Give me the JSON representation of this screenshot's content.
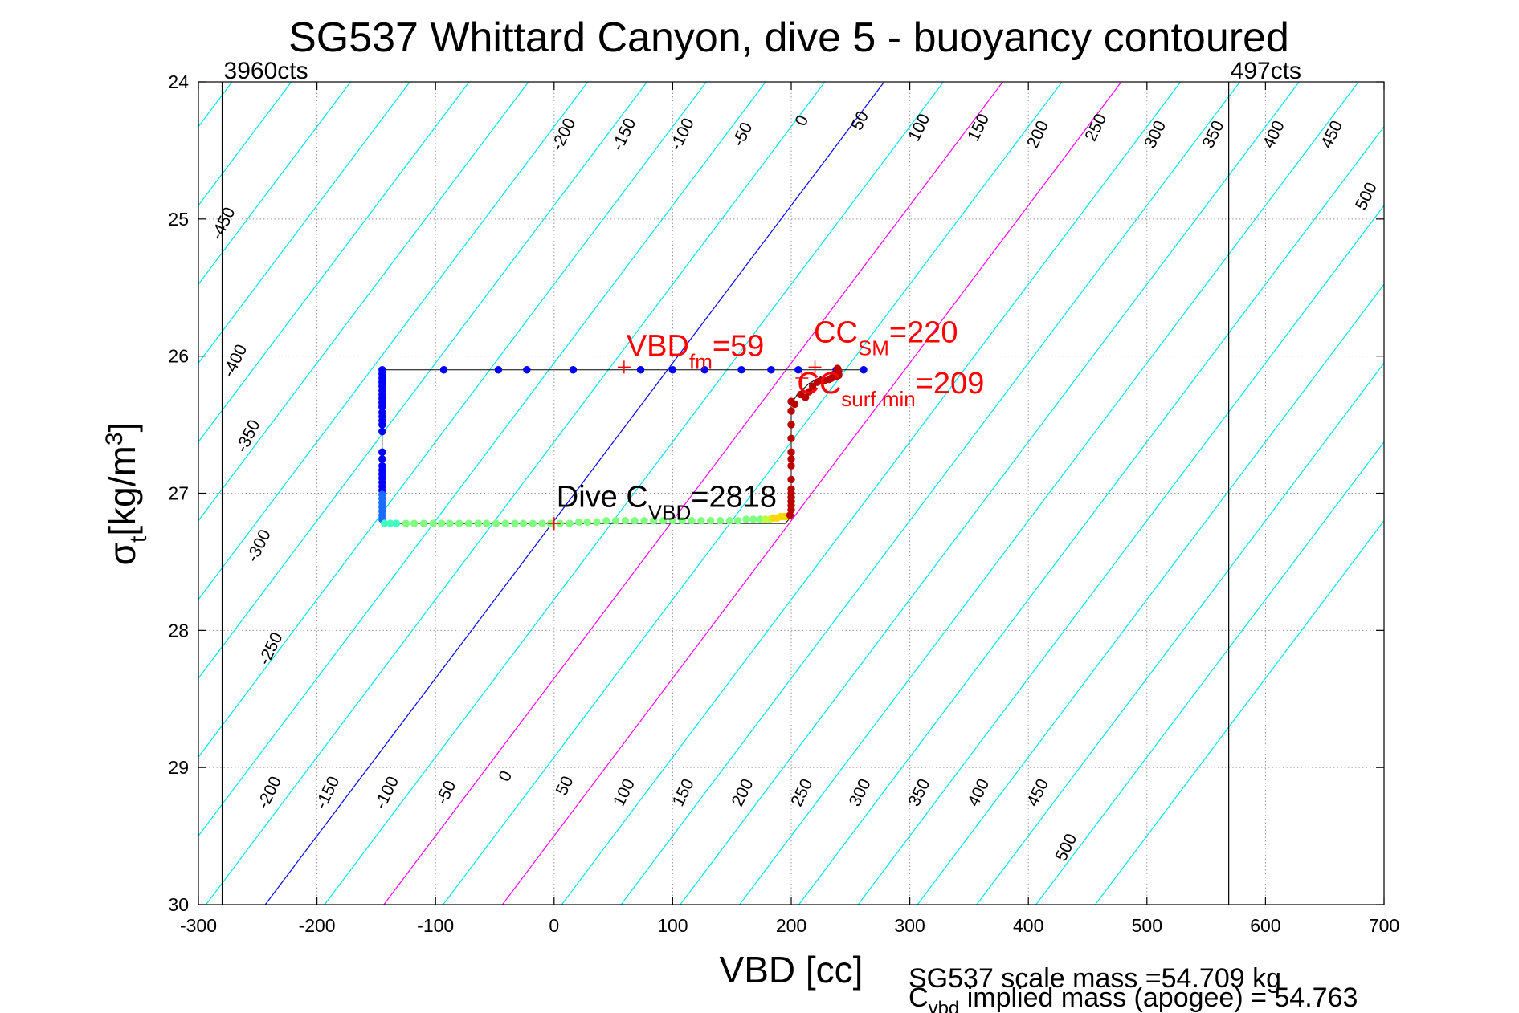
{
  "chart_data": {
    "type": "scatter",
    "title": "SG537 Whittard Canyon, dive 5 - buoyancy contoured",
    "xlabel": "VBD [cc]",
    "ylabel_main": "σ",
    "ylabel_sub": "t",
    "ylabel_unit": "[kg/m",
    "ylabel_sup": "3",
    "ylabel_close": "]",
    "xlim": [
      -300,
      700
    ],
    "ylim": [
      24,
      30
    ],
    "y_reversed": true,
    "grid": true,
    "xticks": [
      -300,
      -200,
      -100,
      0,
      100,
      200,
      300,
      400,
      500,
      600,
      700
    ],
    "yticks": [
      24,
      25,
      26,
      27,
      28,
      29,
      30
    ],
    "vbd_limits": [
      {
        "x": -280,
        "label": "3960cts"
      },
      {
        "x": 569,
        "label": "497cts"
      }
    ],
    "contours": {
      "color": "#00e5ee",
      "slope_cc_per_sigma": 87,
      "levels": [
        -450,
        -400,
        -350,
        -300,
        -250,
        -200,
        -150,
        -100,
        -50,
        0,
        50,
        100,
        150,
        200,
        250,
        300,
        350,
        400,
        450,
        500
      ],
      "highlighted": [
        {
          "level": 0,
          "color": "#0000ff"
        },
        {
          "level": 100,
          "color": "#ff00ff"
        },
        {
          "level": 200,
          "color": "#ff00ff"
        }
      ],
      "top_labels": [
        {
          "level": -450,
          "x": -275,
          "y": 25.05
        },
        {
          "level": -400,
          "x": -265,
          "y": 26.05
        },
        {
          "level": -350,
          "x": -254,
          "y": 26.6
        },
        {
          "level": -300,
          "x": -245,
          "y": 27.4
        },
        {
          "level": -250,
          "x": -235,
          "y": 28.15
        },
        {
          "level": -200,
          "x": 12,
          "y": 24.4
        },
        {
          "level": -150,
          "x": 63,
          "y": 24.4
        },
        {
          "level": -100,
          "x": 112,
          "y": 24.4
        },
        {
          "level": -50,
          "x": 163,
          "y": 24.4
        },
        {
          "level": 0,
          "x": 213,
          "y": 24.3
        },
        {
          "level": 50,
          "x": 262,
          "y": 24.3
        },
        {
          "level": 100,
          "x": 312,
          "y": 24.35
        },
        {
          "level": 150,
          "x": 362,
          "y": 24.35
        },
        {
          "level": 200,
          "x": 412,
          "y": 24.4
        },
        {
          "level": 250,
          "x": 461,
          "y": 24.35
        },
        {
          "level": 300,
          "x": 511,
          "y": 24.4
        },
        {
          "level": 350,
          "x": 560,
          "y": 24.4
        },
        {
          "level": 400,
          "x": 611,
          "y": 24.4
        },
        {
          "level": 450,
          "x": 660,
          "y": 24.4
        },
        {
          "level": 500,
          "x": 689,
          "y": 24.85
        }
      ],
      "bottom_labels": [
        {
          "level": -200,
          "x": -236,
          "y": 29.2
        },
        {
          "level": -150,
          "x": -187,
          "y": 29.2
        },
        {
          "level": -100,
          "x": -137,
          "y": 29.2
        },
        {
          "level": -50,
          "x": -87,
          "y": 29.2
        },
        {
          "level": 0,
          "x": -37,
          "y": 29.08
        },
        {
          "level": 50,
          "x": 13,
          "y": 29.15
        },
        {
          "level": 100,
          "x": 63,
          "y": 29.2
        },
        {
          "level": 150,
          "x": 113,
          "y": 29.2
        },
        {
          "level": 200,
          "x": 163,
          "y": 29.2
        },
        {
          "level": 250,
          "x": 213,
          "y": 29.2
        },
        {
          "level": 300,
          "x": 262,
          "y": 29.2
        },
        {
          "level": 350,
          "x": 312,
          "y": 29.2
        },
        {
          "level": 400,
          "x": 362,
          "y": 29.2
        },
        {
          "level": 450,
          "x": 412,
          "y": 29.2
        },
        {
          "level": 500,
          "x": 436,
          "y": 29.6
        }
      ]
    },
    "dive_path": [
      [
        261,
        26.1
      ],
      [
        -145,
        26.1
      ],
      [
        -145,
        27.22
      ],
      [
        195,
        27.22
      ],
      [
        200,
        27.17
      ],
      [
        200,
        26.35
      ],
      [
        205,
        26.28
      ],
      [
        215,
        26.2
      ],
      [
        225,
        26.15
      ],
      [
        238,
        26.1
      ]
    ],
    "series": [
      {
        "name": "",
        "color": "#0000ff",
        "points": [
          [
            261,
            26.1
          ],
          [
            238,
            26.1
          ],
          [
            206,
            26.1
          ],
          [
            183,
            26.1
          ],
          [
            158,
            26.1
          ],
          [
            127,
            26.1
          ],
          [
            100,
            26.1
          ],
          [
            73,
            26.1
          ],
          [
            16,
            26.1
          ],
          [
            -23,
            26.1
          ],
          [
            -47,
            26.1
          ],
          [
            -93,
            26.1
          ],
          [
            -145,
            26.1
          ],
          [
            -145,
            26.13
          ],
          [
            -145,
            26.16
          ],
          [
            -145,
            26.19
          ],
          [
            -145,
            26.22
          ],
          [
            -145,
            26.25
          ],
          [
            -145,
            26.28
          ],
          [
            -145,
            26.31
          ],
          [
            -145,
            26.34
          ],
          [
            -145,
            26.37
          ],
          [
            -145,
            26.41
          ],
          [
            -145,
            26.44
          ],
          [
            -145,
            26.47
          ],
          [
            -145,
            26.5
          ],
          [
            -145,
            26.55
          ],
          [
            -145,
            26.7
          ],
          [
            -145,
            26.75
          ],
          [
            -145,
            26.8
          ],
          [
            -145,
            26.83
          ],
          [
            -145,
            26.86
          ],
          [
            -145,
            26.89
          ],
          [
            -145,
            26.92
          ],
          [
            -145,
            26.95
          ],
          [
            -145,
            26.98
          ]
        ]
      },
      {
        "name": "",
        "color": "#1a6dff",
        "points": [
          [
            -145,
            27.01
          ],
          [
            -145,
            27.04
          ],
          [
            -145,
            27.07
          ],
          [
            -145,
            27.1
          ],
          [
            -145,
            27.13
          ],
          [
            -145,
            27.16
          ],
          [
            -145,
            27.19
          ]
        ]
      },
      {
        "name": "",
        "color": "#40ffbf",
        "points": [
          [
            -143,
            27.22
          ],
          [
            -138,
            27.22
          ],
          [
            -133,
            27.22
          ]
        ]
      },
      {
        "name": "",
        "color": "#80ff80",
        "points": [
          [
            -125,
            27.22
          ],
          [
            -118,
            27.22
          ],
          [
            -110,
            27.22
          ],
          [
            -102,
            27.22
          ],
          [
            -95,
            27.22
          ],
          [
            -88,
            27.22
          ],
          [
            -80,
            27.22
          ],
          [
            -72,
            27.22
          ],
          [
            -64,
            27.22
          ],
          [
            -57,
            27.22
          ],
          [
            -49,
            27.22
          ],
          [
            -41,
            27.22
          ],
          [
            -33,
            27.22
          ],
          [
            -26,
            27.22
          ],
          [
            -18,
            27.22
          ],
          [
            -10,
            27.22
          ],
          [
            -3,
            27.22
          ],
          [
            5,
            27.22
          ],
          [
            13,
            27.22
          ],
          [
            21,
            27.21
          ],
          [
            28,
            27.21
          ],
          [
            36,
            27.21
          ],
          [
            44,
            27.2
          ],
          [
            52,
            27.2
          ],
          [
            60,
            27.2
          ],
          [
            68,
            27.2
          ],
          [
            76,
            27.2
          ],
          [
            84,
            27.2
          ],
          [
            92,
            27.2
          ],
          [
            100,
            27.2
          ],
          [
            108,
            27.2
          ],
          [
            116,
            27.2
          ],
          [
            124,
            27.2
          ],
          [
            132,
            27.2
          ],
          [
            140,
            27.2
          ],
          [
            148,
            27.2
          ],
          [
            155,
            27.2
          ],
          [
            162,
            27.19
          ],
          [
            168,
            27.19
          ],
          [
            174,
            27.19
          ]
        ]
      },
      {
        "name": "",
        "color": "#c0ff40",
        "points": [
          [
            178,
            27.19
          ],
          [
            182,
            27.19
          ]
        ]
      },
      {
        "name": "",
        "color": "#ffd700",
        "points": [
          [
            185,
            27.18
          ],
          [
            188,
            27.18
          ],
          [
            191,
            27.17
          ],
          [
            194,
            27.17
          ],
          [
            196,
            27.17
          ]
        ]
      },
      {
        "name": "",
        "color": "#bb0000",
        "points": [
          [
            199,
            27.16
          ],
          [
            200,
            27.12
          ],
          [
            200,
            27.09
          ],
          [
            200,
            27.06
          ],
          [
            200,
            27.03
          ],
          [
            200,
            27.0
          ],
          [
            200,
            26.97
          ],
          [
            200,
            26.9
          ],
          [
            200,
            26.8
          ],
          [
            200,
            26.75
          ],
          [
            200,
            26.7
          ],
          [
            200,
            26.6
          ],
          [
            200,
            26.5
          ],
          [
            200,
            26.4
          ],
          [
            200,
            26.33
          ],
          [
            203,
            26.35
          ],
          [
            208,
            26.28
          ],
          [
            212,
            26.3
          ],
          [
            215,
            26.26
          ],
          [
            218,
            26.22
          ],
          [
            222,
            26.19
          ],
          [
            225,
            26.18
          ],
          [
            228,
            26.18
          ],
          [
            232,
            26.17
          ],
          [
            234,
            26.16
          ],
          [
            236,
            26.15
          ],
          [
            238,
            26.12
          ],
          [
            239,
            26.09
          ],
          [
            240,
            26.11
          ],
          [
            240,
            26.14
          ],
          [
            238,
            26.15
          ]
        ]
      }
    ],
    "markers": [
      {
        "x": 59,
        "y": 26.08,
        "color": "#ff0000"
      },
      {
        "x": 220,
        "y": 26.08,
        "color": "#ff0000"
      },
      {
        "x": 209,
        "y": 26.16,
        "color": "#ff0000"
      },
      {
        "x": 0,
        "y": 27.22,
        "color": "#ff0000"
      }
    ],
    "annotations": [
      {
        "color": "#ff0000",
        "x": 61,
        "y": 26.0,
        "main": "VBD",
        "sub": "fm",
        "tail": "=59"
      },
      {
        "color": "#ff0000",
        "x": 219,
        "y": 25.9,
        "main": "CC",
        "sub": "SM",
        "tail": "=220"
      },
      {
        "color": "#ff0000",
        "x": 205,
        "y": 26.27,
        "main": "CC",
        "sub": "surf min",
        "tail": "=209"
      },
      {
        "color": "#000000",
        "x": 2,
        "y": 27.1,
        "main": "Dive C",
        "sub": "VBD",
        "tail": "=2818"
      }
    ],
    "footer": {
      "scale_mass": "SG537 scale mass =54.709 kg",
      "implied_main": "C",
      "implied_sub": "vbd",
      "implied_tail": " implied mass (apogee) = 54.763"
    }
  }
}
